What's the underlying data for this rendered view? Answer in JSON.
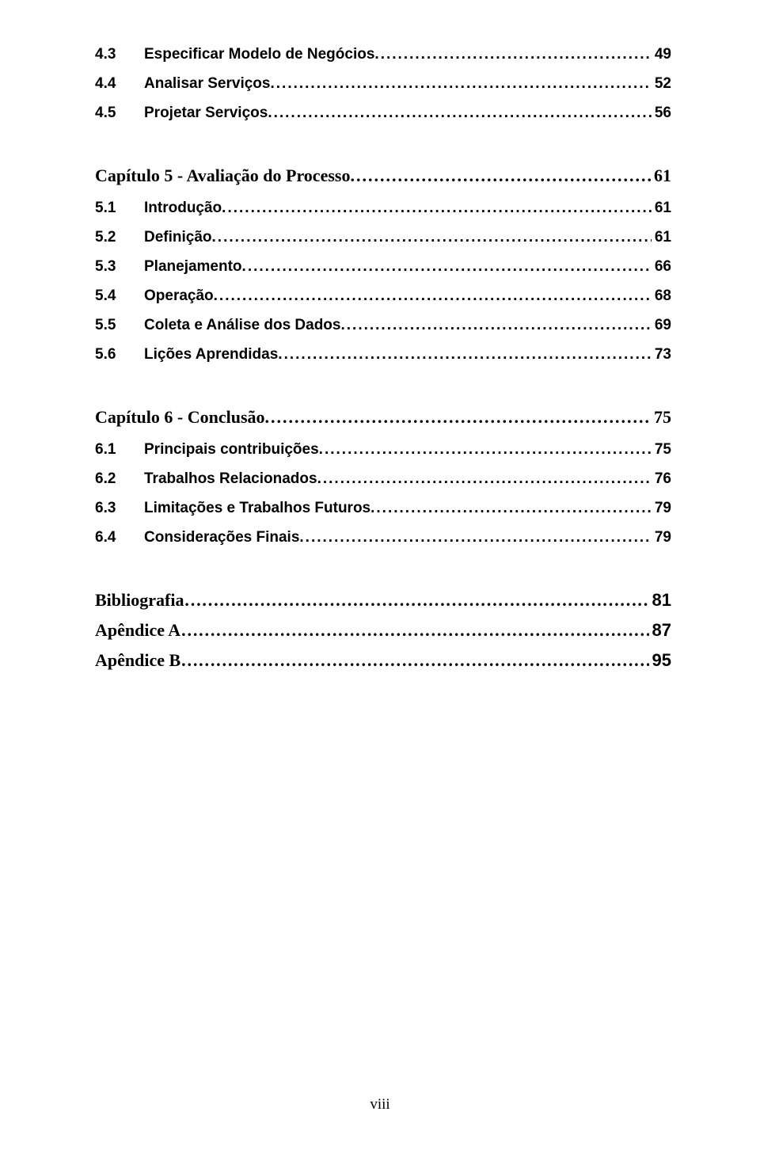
{
  "colors": {
    "text": "#000000",
    "background": "#ffffff"
  },
  "typography": {
    "sub_font": "Arial",
    "sub_size_pt": 14,
    "sub_weight": "bold",
    "chapter_font": "Times New Roman",
    "chapter_size_pt": 16,
    "chapter_weight": "bold",
    "footer_font": "Times New Roman",
    "footer_size_pt": 14
  },
  "toc": {
    "group1": {
      "s43": {
        "num": "4.3",
        "title": "Especificar Modelo de Negócios",
        "page": "49"
      },
      "s44": {
        "num": "4.4",
        "title": "Analisar Serviços",
        "page": "52"
      },
      "s45": {
        "num": "4.5",
        "title": "Projetar Serviços",
        "page": "56"
      }
    },
    "ch5": {
      "title": "Capítulo 5 - Avaliação do Processo",
      "page": "61",
      "s51": {
        "num": "5.1",
        "title": "Introdução",
        "page": "61"
      },
      "s52": {
        "num": "5.2",
        "title": "Definição",
        "page": "61"
      },
      "s53": {
        "num": "5.3",
        "title": "Planejamento",
        "page": "66"
      },
      "s54": {
        "num": "5.4",
        "title": "Operação",
        "page": "68"
      },
      "s55": {
        "num": "5.5",
        "title": "Coleta e Análise dos Dados",
        "page": "69"
      },
      "s56": {
        "num": "5.6",
        "title": "Lições Aprendidas",
        "page": "73"
      }
    },
    "ch6": {
      "title": "Capítulo 6 - Conclusão",
      "page": "75",
      "s61": {
        "num": "6.1",
        "title": "Principais contribuições",
        "page": "75"
      },
      "s62": {
        "num": "6.2",
        "title": "Trabalhos Relacionados",
        "page": "76"
      },
      "s63": {
        "num": "6.3",
        "title": "Limitações e Trabalhos Futuros",
        "page": "79"
      },
      "s64": {
        "num": "6.4",
        "title": "Considerações Finais",
        "page": "79"
      }
    },
    "back": {
      "bibliografia": {
        "title": "Bibliografia",
        "page": "81"
      },
      "apendiceA": {
        "title": "Apêndice A",
        "page": "87"
      },
      "apendiceB": {
        "title": "Apêndice B",
        "page": "95"
      }
    }
  },
  "footer": "viii"
}
